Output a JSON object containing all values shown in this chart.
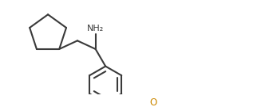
{
  "bg_color": "#ffffff",
  "line_color": "#3a3a3a",
  "text_color": "#3a3a3a",
  "o_color": "#cc8800",
  "lw": 1.5,
  "nh2_label": "NH₂",
  "o_label": "O",
  "figsize": [
    3.47,
    1.35
  ],
  "dpi": 100,
  "xlim": [
    0.0,
    9.5
  ],
  "ylim": [
    0.0,
    3.7
  ]
}
